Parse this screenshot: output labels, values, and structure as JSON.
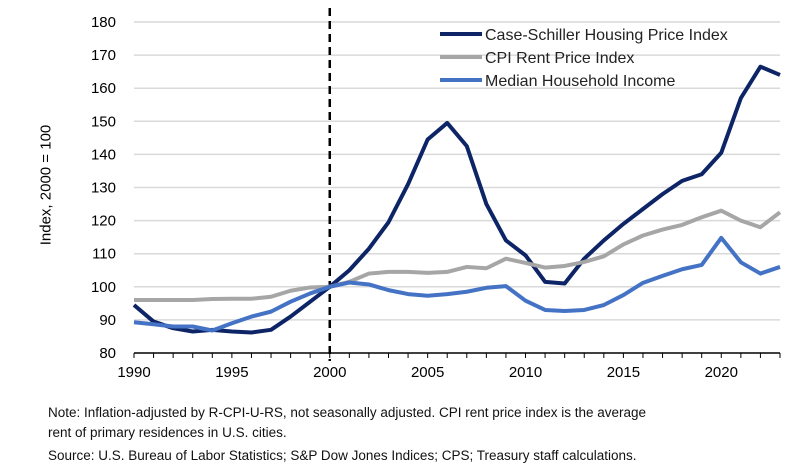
{
  "chart_data": {
    "type": "line",
    "title": "",
    "xlabel": "",
    "ylabel": "Index, 2000 = 100",
    "xlim": [
      1990,
      2023
    ],
    "ylim": [
      80,
      180
    ],
    "yticks": [
      80,
      90,
      100,
      110,
      120,
      130,
      140,
      150,
      160,
      170,
      180
    ],
    "xticks": [
      1990,
      1995,
      2000,
      2005,
      2010,
      2015,
      2020
    ],
    "grid": "horizontal",
    "legend": "top-right",
    "vline": 2000,
    "x": [
      1990,
      1991,
      1992,
      1993,
      1994,
      1995,
      1996,
      1997,
      1998,
      1999,
      2000,
      2001,
      2002,
      2003,
      2004,
      2005,
      2006,
      2007,
      2008,
      2009,
      2010,
      2011,
      2012,
      2013,
      2014,
      2015,
      2016,
      2017,
      2018,
      2019,
      2020,
      2021,
      2022,
      2023
    ],
    "series": [
      {
        "name": "Case-Schiller Housing Price Index",
        "color": "#0d2566",
        "values": [
          94.5,
          89.5,
          87.5,
          86.5,
          87,
          86.5,
          86.2,
          87,
          91,
          95.5,
          100,
          105,
          111.5,
          119.5,
          131,
          144.5,
          149.5,
          142.5,
          125,
          114,
          109.5,
          101.5,
          101,
          108.5,
          114,
          119,
          123.5,
          128,
          132,
          134,
          140.5,
          157,
          166.5,
          164
        ]
      },
      {
        "name": "CPI Rent Price Index",
        "color": "#a6a6a6",
        "values": [
          96,
          96,
          96,
          96,
          96.3,
          96.4,
          96.4,
          97,
          98.8,
          99.8,
          100,
          101.5,
          104,
          104.5,
          104.5,
          104.2,
          104.5,
          106,
          105.6,
          108.5,
          107.2,
          105.8,
          106.3,
          107.5,
          109.2,
          112.8,
          115.5,
          117.3,
          118.7,
          121,
          123,
          120,
          118,
          122.5
        ]
      },
      {
        "name": "Median Household Income",
        "color": "#4472c4",
        "values": [
          89.3,
          88.7,
          88,
          88,
          86.8,
          89,
          91,
          92.5,
          95.5,
          98,
          100,
          101.3,
          100.7,
          99,
          97.8,
          97.3,
          97.8,
          98.5,
          99.7,
          100.2,
          95.8,
          93,
          92.7,
          93,
          94.5,
          97.5,
          101.2,
          103.3,
          105.3,
          106.6,
          114.8,
          107.4,
          104,
          106
        ]
      }
    ]
  },
  "notes": {
    "line1": "Note:  Inflation-adjusted by R-CPI-U-RS, not seasonally adjusted. CPI rent price index is the average",
    "line2": "rent of primary residences in U.S. cities.",
    "line3": "Source: U.S. Bureau of Labor Statistics; S&P Dow Jones Indices; CPS; Treasury staff calculations."
  }
}
